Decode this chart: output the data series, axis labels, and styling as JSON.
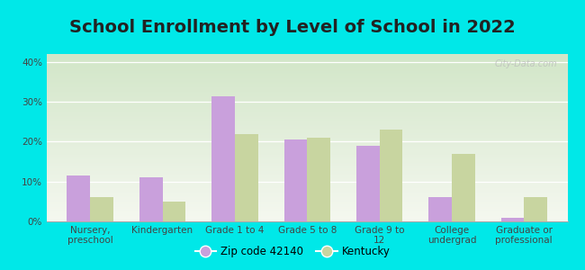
{
  "title": "School Enrollment by Level of School in 2022",
  "categories": [
    "Nursery,\npreschool",
    "Kindergarten",
    "Grade 1 to 4",
    "Grade 5 to 8",
    "Grade 9 to\n12",
    "College\nundergrad",
    "Graduate or\nprofessional"
  ],
  "zip_values": [
    11.5,
    11.0,
    31.5,
    20.5,
    19.0,
    6.0,
    1.0
  ],
  "ky_values": [
    6.0,
    5.0,
    22.0,
    21.0,
    23.0,
    17.0,
    6.0
  ],
  "zip_color": "#c9a0dc",
  "ky_color": "#c8d5a0",
  "background_outer": "#00e8e8",
  "background_plot_top": "#f5f5f0",
  "background_plot_bottom": "#d8ecd0",
  "ylim": [
    0,
    42
  ],
  "yticks": [
    0,
    10,
    20,
    30,
    40
  ],
  "ytick_labels": [
    "0%",
    "10%",
    "20%",
    "30%",
    "40%"
  ],
  "legend_zip_label": "Zip code 42140",
  "legend_ky_label": "Kentucky",
  "title_fontsize": 14,
  "tick_fontsize": 7.5,
  "legend_fontsize": 8.5,
  "bar_width": 0.32,
  "watermark": "City-Data.com"
}
